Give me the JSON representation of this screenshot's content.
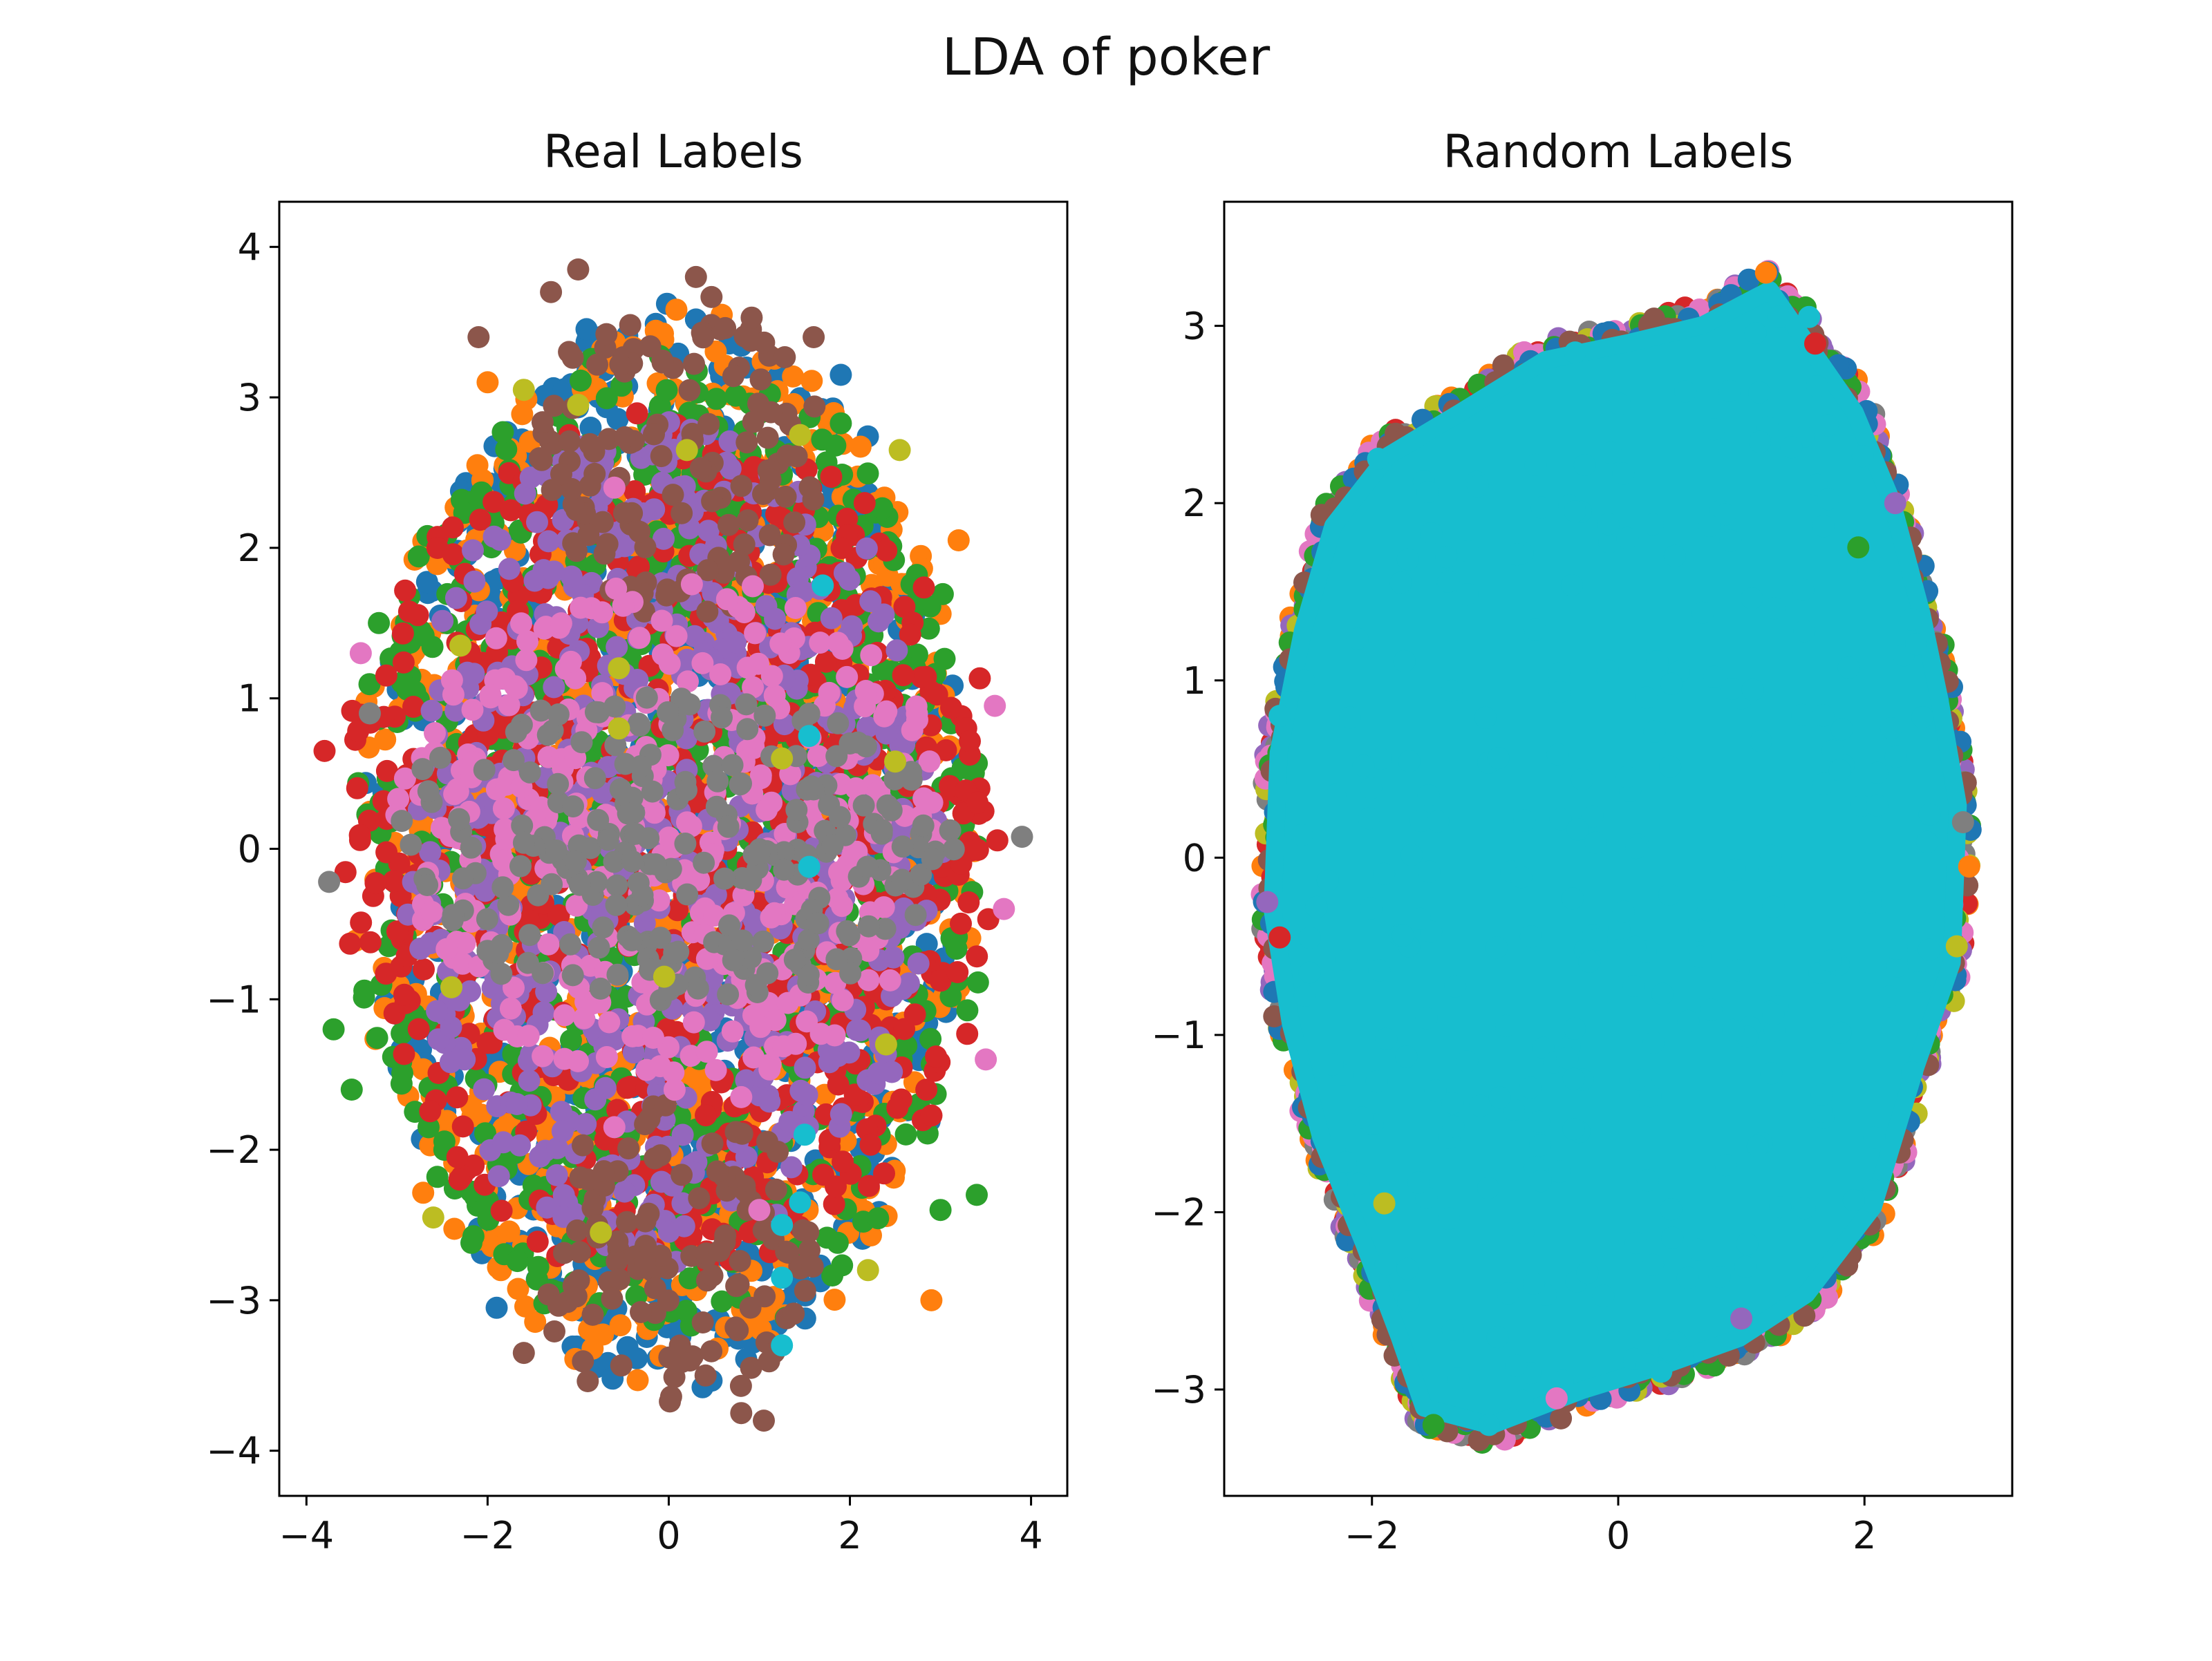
{
  "figure": {
    "suptitle": "LDA of poker"
  },
  "palette": {
    "blue": "#1f77b4",
    "orange": "#ff7f0e",
    "green": "#2ca02c",
    "red": "#d62728",
    "purple": "#9467bd",
    "brown": "#8c564b",
    "pink": "#e377c2",
    "gray": "#7f7f7f",
    "olive": "#bcbd22",
    "cyan": "#17becf"
  },
  "chart_data": [
    {
      "type": "scatter",
      "title": "Real Labels",
      "xlabel": "",
      "ylabel": "",
      "xlim": [
        -4.3,
        4.4
      ],
      "ylim": [
        -4.3,
        4.3
      ],
      "xticks": [
        -4,
        -2,
        0,
        2,
        4
      ],
      "yticks": [
        -4,
        -3,
        -2,
        -1,
        0,
        1,
        2,
        3,
        4
      ],
      "grid": false,
      "legend": "none",
      "shape": "ellipse-layers",
      "layers": [
        {
          "color": "#1f77b4",
          "cx": 0.0,
          "cy": 0.0,
          "rx": 3.3,
          "ry": 3.6
        },
        {
          "color": "#ff7f0e",
          "cx": 0.0,
          "cy": 0.0,
          "rx": 3.45,
          "ry": 3.55
        },
        {
          "color": "#2ca02c",
          "cx": 0.0,
          "cy": 0.0,
          "rx": 3.55,
          "ry": 3.3
        },
        {
          "color": "#d62728",
          "cx": 0.0,
          "cy": 0.0,
          "rx": 3.65,
          "ry": 2.9
        },
        {
          "color": "#9467bd",
          "cx": 0.0,
          "cy": 0.0,
          "rx": 3.0,
          "ry": 2.85
        },
        {
          "color": "#8c564b",
          "cx": 0.1,
          "cy": 2.6,
          "rx": 1.6,
          "ry": 1.15
        },
        {
          "color": "#8c564b",
          "cx": 0.1,
          "cy": -2.7,
          "rx": 1.55,
          "ry": 1.05
        },
        {
          "color": "#e377c2",
          "cx": 0.0,
          "cy": 0.1,
          "rx": 3.1,
          "ry": 1.7
        },
        {
          "color": "#7f7f7f",
          "cx": 0.0,
          "cy": 0.0,
          "rx": 3.2,
          "ry": 1.05
        }
      ],
      "points": [
        {
          "x": -1.0,
          "y": 3.85,
          "c": "#8c564b"
        },
        {
          "x": -1.3,
          "y": 3.7,
          "c": "#8c564b"
        },
        {
          "x": -2.1,
          "y": 3.4,
          "c": "#8c564b"
        },
        {
          "x": 1.6,
          "y": 3.4,
          "c": "#8c564b"
        },
        {
          "x": 0.3,
          "y": 3.8,
          "c": "#8c564b"
        },
        {
          "x": -1.6,
          "y": -3.35,
          "c": "#8c564b"
        },
        {
          "x": 1.05,
          "y": -3.8,
          "c": "#8c564b"
        },
        {
          "x": 0.8,
          "y": -3.75,
          "c": "#8c564b"
        },
        {
          "x": 3.9,
          "y": 0.08,
          "c": "#7f7f7f"
        },
        {
          "x": -3.3,
          "y": 0.9,
          "c": "#7f7f7f"
        },
        {
          "x": -3.75,
          "y": -0.22,
          "c": "#7f7f7f"
        },
        {
          "x": 2.0,
          "y": 0.7,
          "c": "#7f7f7f"
        },
        {
          "x": 3.6,
          "y": 0.95,
          "c": "#e377c2"
        },
        {
          "x": -3.4,
          "y": 1.3,
          "c": "#e377c2"
        },
        {
          "x": 3.7,
          "y": -0.4,
          "c": "#e377c2"
        },
        {
          "x": -0.6,
          "y": -1.85,
          "c": "#e377c2"
        },
        {
          "x": 1.0,
          "y": -2.4,
          "c": "#e377c2"
        },
        {
          "x": 0.8,
          "y": -1.65,
          "c": "#e377c2"
        },
        {
          "x": -0.6,
          "y": 2.4,
          "c": "#e377c2"
        },
        {
          "x": 1.4,
          "y": 1.6,
          "c": "#e377c2"
        },
        {
          "x": 3.5,
          "y": -1.4,
          "c": "#e377c2"
        },
        {
          "x": -3.8,
          "y": 0.65,
          "c": "#d62728"
        },
        {
          "x": -3.7,
          "y": -1.2,
          "c": "#2ca02c"
        },
        {
          "x": 3.0,
          "y": -2.4,
          "c": "#2ca02c"
        },
        {
          "x": 3.4,
          "y": -2.3,
          "c": "#2ca02c"
        },
        {
          "x": -3.5,
          "y": -1.6,
          "c": "#2ca02c"
        },
        {
          "x": 3.2,
          "y": 2.05,
          "c": "#ff7f0e"
        },
        {
          "x": -3.2,
          "y": 1.5,
          "c": "#2ca02c"
        },
        {
          "x": -2.0,
          "y": 3.1,
          "c": "#ff7f0e"
        },
        {
          "x": 2.9,
          "y": -3.0,
          "c": "#ff7f0e"
        },
        {
          "x": -1.9,
          "y": -3.05,
          "c": "#1f77b4"
        },
        {
          "x": 1.9,
          "y": 3.15,
          "c": "#1f77b4"
        },
        {
          "x": -1.6,
          "y": 3.05,
          "c": "#bcbd22"
        },
        {
          "x": -1.0,
          "y": 2.95,
          "c": "#bcbd22"
        },
        {
          "x": 0.2,
          "y": 2.65,
          "c": "#bcbd22"
        },
        {
          "x": 1.45,
          "y": 2.75,
          "c": "#bcbd22"
        },
        {
          "x": 2.55,
          "y": 2.65,
          "c": "#bcbd22"
        },
        {
          "x": -2.3,
          "y": 1.35,
          "c": "#bcbd22"
        },
        {
          "x": -0.55,
          "y": 1.2,
          "c": "#bcbd22"
        },
        {
          "x": -0.55,
          "y": 0.8,
          "c": "#bcbd22"
        },
        {
          "x": 1.25,
          "y": 0.6,
          "c": "#bcbd22"
        },
        {
          "x": 2.5,
          "y": 0.58,
          "c": "#bcbd22"
        },
        {
          "x": -2.4,
          "y": -0.92,
          "c": "#bcbd22"
        },
        {
          "x": -0.05,
          "y": -0.85,
          "c": "#bcbd22"
        },
        {
          "x": 2.4,
          "y": -1.3,
          "c": "#bcbd22"
        },
        {
          "x": -2.6,
          "y": -2.45,
          "c": "#bcbd22"
        },
        {
          "x": -0.75,
          "y": -2.55,
          "c": "#bcbd22"
        },
        {
          "x": 2.2,
          "y": -2.8,
          "c": "#bcbd22"
        },
        {
          "x": 1.7,
          "y": 1.75,
          "c": "#17becf"
        },
        {
          "x": 1.55,
          "y": 0.75,
          "c": "#17becf"
        },
        {
          "x": 1.55,
          "y": -0.12,
          "c": "#17becf"
        },
        {
          "x": 1.5,
          "y": -1.9,
          "c": "#17becf"
        },
        {
          "x": 1.45,
          "y": -2.35,
          "c": "#17becf"
        },
        {
          "x": 1.25,
          "y": -2.5,
          "c": "#17becf"
        },
        {
          "x": 1.25,
          "y": -2.85,
          "c": "#17becf"
        },
        {
          "x": 1.25,
          "y": -3.3,
          "c": "#17becf"
        }
      ]
    },
    {
      "type": "scatter",
      "title": "Random Labels",
      "xlabel": "",
      "ylabel": "",
      "xlim": [
        -3.2,
        3.2
      ],
      "ylim": [
        -3.6,
        3.7
      ],
      "xticks": [
        -2,
        0,
        2
      ],
      "yticks": [
        -3,
        -2,
        -1,
        0,
        1,
        2,
        3
      ],
      "grid": false,
      "legend": "none",
      "shape": "blob",
      "outline": [
        [
          -1.6,
          -3.15
        ],
        [
          -1.05,
          -3.25
        ],
        [
          -0.3,
          -3.05
        ],
        [
          0.4,
          -2.9
        ],
        [
          1.0,
          -2.75
        ],
        [
          1.55,
          -2.5
        ],
        [
          2.1,
          -2.0
        ],
        [
          2.45,
          -1.2
        ],
        [
          2.75,
          -0.6
        ],
        [
          2.8,
          0.3
        ],
        [
          2.65,
          0.9
        ],
        [
          2.5,
          1.4
        ],
        [
          2.25,
          2.05
        ],
        [
          1.95,
          2.55
        ],
        [
          1.6,
          2.9
        ],
        [
          1.25,
          3.25
        ],
        [
          0.7,
          3.05
        ],
        [
          0.1,
          2.95
        ],
        [
          -0.6,
          2.85
        ],
        [
          -1.3,
          2.55
        ],
        [
          -1.9,
          2.3
        ],
        [
          -2.35,
          1.9
        ],
        [
          -2.6,
          1.3
        ],
        [
          -2.8,
          0.6
        ],
        [
          -2.85,
          -0.3
        ],
        [
          -2.7,
          -0.95
        ],
        [
          -2.45,
          -1.6
        ],
        [
          -2.1,
          -2.2
        ],
        [
          -1.8,
          -2.75
        ]
      ],
      "layer_colors": [
        "#ff7f0e",
        "#d62728",
        "#9467bd",
        "#7f7f7f",
        "#bcbd22",
        "#e377c2",
        "#2ca02c",
        "#1f77b4",
        "#8c564b"
      ],
      "fill_color": "#17becf",
      "points": [
        {
          "x": -2.75,
          "y": 0.8,
          "c": "#17becf"
        },
        {
          "x": -1.95,
          "y": 2.25,
          "c": "#17becf"
        },
        {
          "x": 1.55,
          "y": 3.05,
          "c": "#17becf"
        },
        {
          "x": -0.35,
          "y": 2.85,
          "c": "#17becf"
        },
        {
          "x": 0.35,
          "y": -2.9,
          "c": "#17becf"
        },
        {
          "x": -1.05,
          "y": -3.2,
          "c": "#17becf"
        },
        {
          "x": 1.2,
          "y": 3.3,
          "c": "#ff7f0e"
        },
        {
          "x": 2.85,
          "y": -0.05,
          "c": "#ff7f0e"
        },
        {
          "x": 1.95,
          "y": 1.75,
          "c": "#2ca02c"
        },
        {
          "x": -1.5,
          "y": -3.2,
          "c": "#2ca02c"
        },
        {
          "x": 2.75,
          "y": -0.5,
          "c": "#bcbd22"
        },
        {
          "x": -1.9,
          "y": -1.95,
          "c": "#bcbd22"
        },
        {
          "x": 2.8,
          "y": 0.2,
          "c": "#7f7f7f"
        },
        {
          "x": -2.85,
          "y": -0.25,
          "c": "#9467bd"
        },
        {
          "x": 2.25,
          "y": 2.0,
          "c": "#9467bd"
        },
        {
          "x": 1.0,
          "y": -2.6,
          "c": "#9467bd"
        },
        {
          "x": -2.75,
          "y": -0.45,
          "c": "#d62728"
        },
        {
          "x": 1.6,
          "y": 2.9,
          "c": "#d62728"
        },
        {
          "x": -0.5,
          "y": -3.05,
          "c": "#e377c2"
        }
      ]
    }
  ]
}
